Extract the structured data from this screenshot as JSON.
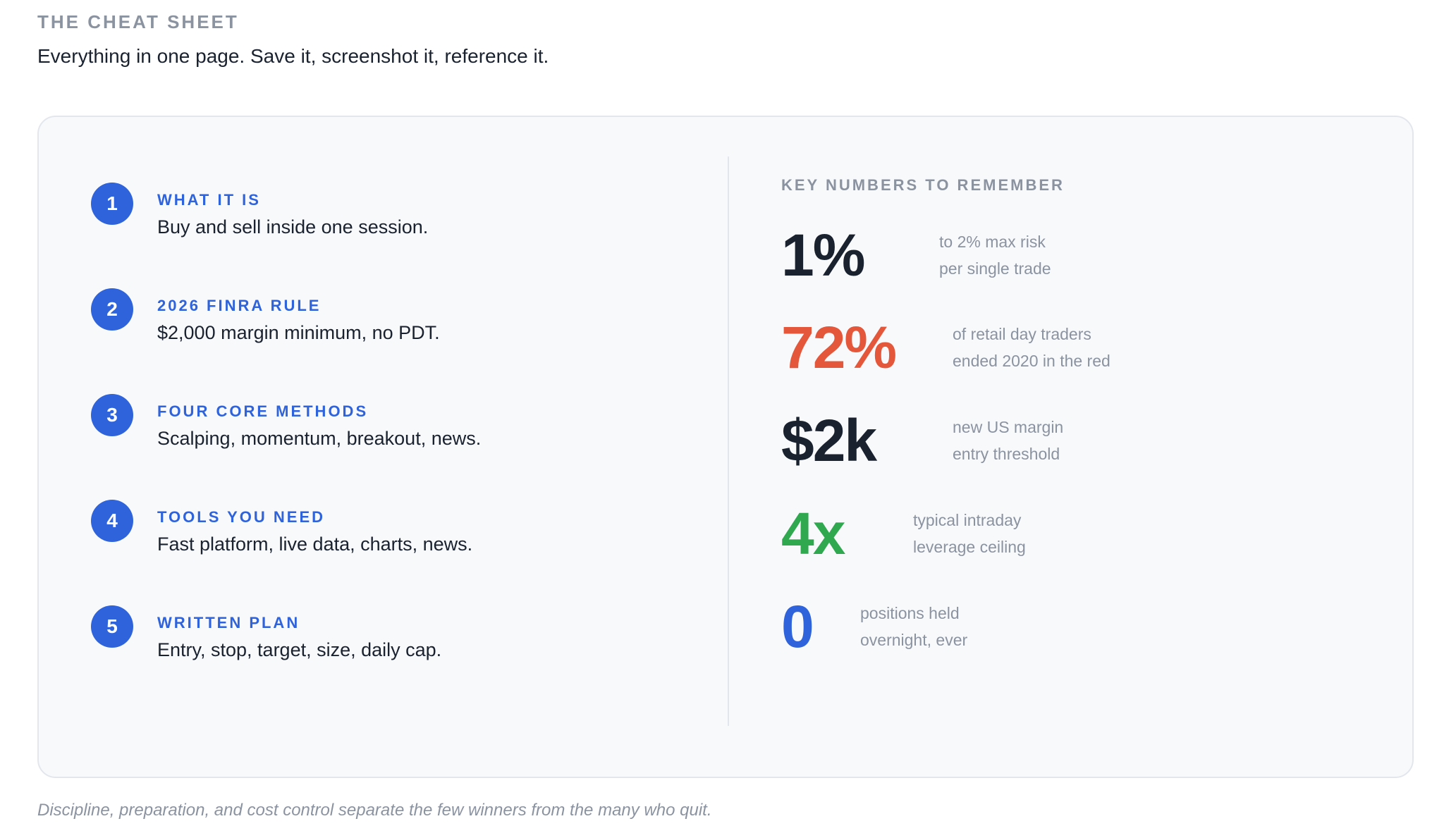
{
  "header": {
    "eyebrow": "THE CHEAT SHEET",
    "intro": "Everything in one page. Save it, screenshot it, reference it."
  },
  "steps": [
    {
      "number": "1",
      "title": "WHAT IT IS",
      "description": "Buy and sell inside one session."
    },
    {
      "number": "2",
      "title": "2026 FINRA RULE",
      "description": "$2,000 margin minimum, no PDT."
    },
    {
      "number": "3",
      "title": "FOUR CORE METHODS",
      "description": "Scalping, momentum, breakout, news."
    },
    {
      "number": "4",
      "title": "TOOLS YOU NEED",
      "description": "Fast platform, live data, charts, news."
    },
    {
      "number": "5",
      "title": "WRITTEN PLAN",
      "description": "Entry, stop, target, size, daily cap."
    }
  ],
  "key_numbers": {
    "heading": "KEY NUMBERS TO REMEMBER",
    "items": [
      {
        "value": "1%",
        "line1": "to 2% max risk",
        "line2": "per single trade",
        "color": "#1a2230"
      },
      {
        "value": "72%",
        "line1": "of retail day traders",
        "line2": "ended 2020 in the red",
        "color": "#e5573a"
      },
      {
        "value": "$2k",
        "line1": "new US margin",
        "line2": "entry threshold",
        "color": "#1a2230"
      },
      {
        "value": "4x",
        "line1": "typical intraday",
        "line2": "leverage ceiling",
        "color": "#2fa84f"
      },
      {
        "value": "0",
        "line1": "positions held",
        "line2": "overnight, ever",
        "color": "#2f63db"
      }
    ]
  },
  "footer": {
    "note": "Discipline, preparation, and cost control separate the few winners from the many who quit."
  },
  "colors": {
    "accent": "#2f63db",
    "muted": "#8b93a1",
    "text": "#1a2230",
    "card_bg": "#f8f9fb",
    "border": "#e3e7ed"
  }
}
